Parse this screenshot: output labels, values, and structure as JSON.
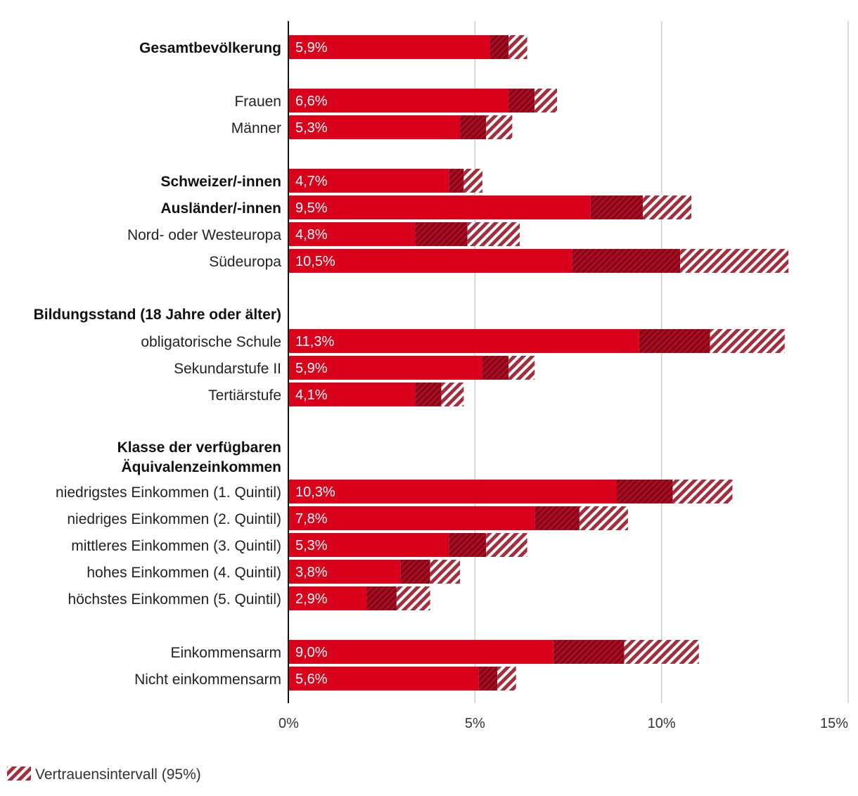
{
  "chart_data": {
    "type": "bar",
    "orientation": "horizontal",
    "title": "",
    "xlabel": "",
    "ylabel": "",
    "xlim": [
      0,
      15
    ],
    "x_ticks": [
      {
        "value": 0,
        "label": "0%"
      },
      {
        "value": 5,
        "label": "5%"
      },
      {
        "value": 10,
        "label": "10%"
      },
      {
        "value": 15,
        "label": "15%"
      }
    ],
    "grid": "vertical",
    "legend": {
      "placement": "bottom-left",
      "label": "Vertrauensintervall (95%)"
    },
    "colors": {
      "bar": "#d9001b",
      "ci_dark": "#a90f22",
      "ci_light": "#a1303e"
    },
    "rows": [
      {
        "label": "Gesamtbevölkerung",
        "bold": true,
        "value": 5.9,
        "value_label": "5,9%",
        "ci_low": 5.4,
        "ci_high": 6.4
      },
      {
        "label": "Frauen",
        "bold": false,
        "value": 6.6,
        "value_label": "6,6%",
        "ci_low": 5.9,
        "ci_high": 7.2
      },
      {
        "label": "Männer",
        "bold": false,
        "value": 5.3,
        "value_label": "5,3%",
        "ci_low": 4.6,
        "ci_high": 6.0
      },
      {
        "label": "Schweizer/-innen",
        "bold": true,
        "value": 4.7,
        "value_label": "4,7%",
        "ci_low": 4.3,
        "ci_high": 5.2
      },
      {
        "label": "Ausländer/-innen",
        "bold": true,
        "value": 9.5,
        "value_label": "9,5%",
        "ci_low": 8.1,
        "ci_high": 10.8
      },
      {
        "label": "Nord- oder Westeuropa",
        "bold": false,
        "value": 4.8,
        "value_label": "4,8%",
        "ci_low": 3.4,
        "ci_high": 6.2
      },
      {
        "label": "Südeuropa",
        "bold": false,
        "value": 10.5,
        "value_label": "10,5%",
        "ci_low": 7.6,
        "ci_high": 13.4
      },
      {
        "label": "obligatorische Schule",
        "bold": false,
        "value": 11.3,
        "value_label": "11,3%",
        "ci_low": 9.4,
        "ci_high": 13.3
      },
      {
        "label": "Sekundarstufe II",
        "bold": false,
        "value": 5.9,
        "value_label": "5,9%",
        "ci_low": 5.2,
        "ci_high": 6.6
      },
      {
        "label": "Tertiärstufe",
        "bold": false,
        "value": 4.1,
        "value_label": "4,1%",
        "ci_low": 3.4,
        "ci_high": 4.7
      },
      {
        "label": "niedrigstes Einkommen (1. Quintil)",
        "bold": false,
        "value": 10.3,
        "value_label": "10,3%",
        "ci_low": 8.8,
        "ci_high": 11.9
      },
      {
        "label": "niedriges Einkommen (2. Quintil)",
        "bold": false,
        "value": 7.8,
        "value_label": "7,8%",
        "ci_low": 6.6,
        "ci_high": 9.1
      },
      {
        "label": "mittleres Einkommen (3. Quintil)",
        "bold": false,
        "value": 5.3,
        "value_label": "5,3%",
        "ci_low": 4.3,
        "ci_high": 6.4
      },
      {
        "label": "hohes Einkommen (4. Quintil)",
        "bold": false,
        "value": 3.8,
        "value_label": "3,8%",
        "ci_low": 3.0,
        "ci_high": 4.6
      },
      {
        "label": "höchstes Einkommen (5. Quintil)",
        "bold": false,
        "value": 2.9,
        "value_label": "2,9%",
        "ci_low": 2.1,
        "ci_high": 3.8
      },
      {
        "label": "Einkommensarm",
        "bold": false,
        "value": 9.0,
        "value_label": "9,0%",
        "ci_low": 7.1,
        "ci_high": 11.0
      },
      {
        "label": "Nicht einkommensarm",
        "bold": false,
        "value": 5.6,
        "value_label": "5,6%",
        "ci_low": 5.1,
        "ci_high": 6.1
      }
    ],
    "section_headers": [
      {
        "lines": [
          "Bildungsstand (18 Jahre oder älter)"
        ]
      },
      {
        "lines": [
          "Klasse der verfügbaren",
          "Äquivalenzeinkommen"
        ]
      }
    ]
  }
}
